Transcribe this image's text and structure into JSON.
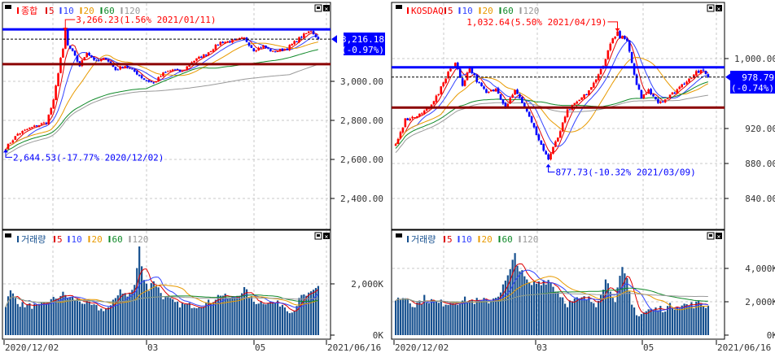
{
  "colors": {
    "up": "#ff0000",
    "down": "#0000ff",
    "ma5": "#e00000",
    "ma10": "#3344ff",
    "ma20": "#e89a00",
    "ma60": "#118a2a",
    "ma120": "#9a9a9a",
    "volume": "#16508f",
    "support": "#8b0000",
    "resistance": "#0000ff",
    "label_bg": "#0000ff"
  },
  "ma_periods": [
    "5",
    "10",
    "20",
    "60",
    "120"
  ],
  "x_axis": {
    "start": "2020/12/02",
    "mar": "03",
    "may": "05",
    "end": "2021/06/16"
  },
  "chart_data": [
    {
      "type": "candlestick",
      "name": "종합",
      "volume_title": "거래량",
      "days": 132,
      "y_ticks": [
        "3,000.00",
        "2,800.00",
        "2,600.00",
        "2,400.00"
      ],
      "y_tick_values": [
        3000,
        2800,
        2600,
        2400
      ],
      "vol_ticks": [
        "2,000K",
        "0K"
      ],
      "vol_tick_values": [
        2000,
        0
      ],
      "current": {
        "price": "3,216.18",
        "change": "(-0.97%)",
        "value": 3216.18
      },
      "resistance": 3266,
      "support": 3088,
      "high_note": {
        "text": "3,266.23(1.56% 2021/01/11)",
        "value": 3266.23,
        "day": 25
      },
      "low_note": {
        "text": "2,644.53(-17.77% 2020/12/02)",
        "value": 2644.53,
        "day": 0
      },
      "close_keypoints": [
        [
          0,
          2660
        ],
        [
          5,
          2730
        ],
        [
          10,
          2760
        ],
        [
          17,
          2790
        ],
        [
          20,
          2900
        ],
        [
          23,
          3120
        ],
        [
          25,
          3200
        ],
        [
          28,
          3150
        ],
        [
          31,
          3080
        ],
        [
          34,
          3150
        ],
        [
          38,
          3100
        ],
        [
          42,
          3120
        ],
        [
          46,
          3060
        ],
        [
          50,
          3080
        ],
        [
          54,
          3050
        ],
        [
          58,
          3010
        ],
        [
          62,
          2990
        ],
        [
          66,
          3040
        ],
        [
          70,
          3060
        ],
        [
          74,
          3050
        ],
        [
          78,
          3100
        ],
        [
          84,
          3140
        ],
        [
          90,
          3200
        ],
        [
          96,
          3210
        ],
        [
          100,
          3220
        ],
        [
          104,
          3160
        ],
        [
          108,
          3180
        ],
        [
          112,
          3150
        ],
        [
          118,
          3170
        ],
        [
          124,
          3230
        ],
        [
          128,
          3260
        ],
        [
          131,
          3216
        ]
      ],
      "volume_keypoints": [
        [
          0,
          1200
        ],
        [
          2,
          1700
        ],
        [
          6,
          1200
        ],
        [
          14,
          1100
        ],
        [
          20,
          1400
        ],
        [
          24,
          1600
        ],
        [
          27,
          1450
        ],
        [
          32,
          1300
        ],
        [
          40,
          1000
        ],
        [
          44,
          1100
        ],
        [
          48,
          1800
        ],
        [
          51,
          1500
        ],
        [
          54,
          1900
        ],
        [
          56,
          3400
        ],
        [
          58,
          2200
        ],
        [
          60,
          1800
        ],
        [
          62,
          2150
        ],
        [
          66,
          1500
        ],
        [
          72,
          1200
        ],
        [
          80,
          1150
        ],
        [
          86,
          1300
        ],
        [
          90,
          1600
        ],
        [
          94,
          1400
        ],
        [
          98,
          1600
        ],
        [
          100,
          1800
        ],
        [
          104,
          1300
        ],
        [
          110,
          1300
        ],
        [
          116,
          1200
        ],
        [
          120,
          900
        ],
        [
          124,
          1500
        ],
        [
          128,
          1600
        ],
        [
          131,
          1900
        ]
      ]
    },
    {
      "type": "candlestick",
      "name": "KOSDAQ",
      "volume_title": "거래량",
      "days": 132,
      "y_ticks": [
        "1,000.00",
        "920.00",
        "880.00",
        "840.00"
      ],
      "y_tick_values": [
        1000,
        920,
        880,
        840
      ],
      "vol_ticks": [
        "4,000K",
        "2,000K",
        "0K"
      ],
      "vol_tick_values": [
        4000,
        2000,
        0
      ],
      "current": {
        "price": "978.79",
        "change": "(-0.74%)",
        "value": 978.79
      },
      "resistance": 990,
      "support": 944,
      "high_note": {
        "text": "1,032.64(5.50% 2021/04/19)",
        "value": 1032.64,
        "day": 93
      },
      "low_note": {
        "text": "877.73(-10.32% 2021/03/09)",
        "value": 877.73,
        "day": 64
      },
      "close_keypoints": [
        [
          0,
          900
        ],
        [
          4,
          930
        ],
        [
          10,
          935
        ],
        [
          14,
          945
        ],
        [
          18,
          960
        ],
        [
          22,
          985
        ],
        [
          25,
          995
        ],
        [
          28,
          970
        ],
        [
          31,
          990
        ],
        [
          34,
          975
        ],
        [
          38,
          960
        ],
        [
          42,
          965
        ],
        [
          46,
          945
        ],
        [
          50,
          965
        ],
        [
          54,
          945
        ],
        [
          58,
          920
        ],
        [
          62,
          895
        ],
        [
          64,
          885
        ],
        [
          68,
          910
        ],
        [
          72,
          940
        ],
        [
          76,
          950
        ],
        [
          80,
          960
        ],
        [
          84,
          975
        ],
        [
          88,
          1000
        ],
        [
          91,
          1025
        ],
        [
          94,
          1025
        ],
        [
          97,
          1020
        ],
        [
          100,
          980
        ],
        [
          103,
          955
        ],
        [
          106,
          965
        ],
        [
          110,
          950
        ],
        [
          114,
          955
        ],
        [
          118,
          965
        ],
        [
          122,
          975
        ],
        [
          126,
          985
        ],
        [
          129,
          985
        ],
        [
          131,
          979
        ]
      ],
      "volume_keypoints": [
        [
          0,
          2100
        ],
        [
          4,
          2300
        ],
        [
          8,
          1800
        ],
        [
          12,
          2200
        ],
        [
          18,
          1900
        ],
        [
          24,
          2000
        ],
        [
          30,
          2100
        ],
        [
          36,
          2000
        ],
        [
          40,
          2100
        ],
        [
          44,
          2600
        ],
        [
          48,
          3800
        ],
        [
          50,
          4900
        ],
        [
          52,
          3900
        ],
        [
          56,
          3000
        ],
        [
          60,
          3200
        ],
        [
          64,
          3300
        ],
        [
          68,
          2600
        ],
        [
          72,
          1900
        ],
        [
          76,
          2100
        ],
        [
          80,
          2200
        ],
        [
          84,
          1900
        ],
        [
          88,
          3300
        ],
        [
          92,
          2200
        ],
        [
          95,
          3900
        ],
        [
          97,
          3200
        ],
        [
          99,
          1800
        ],
        [
          102,
          1200
        ],
        [
          106,
          1500
        ],
        [
          112,
          1600
        ],
        [
          118,
          1800
        ],
        [
          124,
          1800
        ],
        [
          128,
          1900
        ],
        [
          131,
          1700
        ]
      ]
    }
  ]
}
